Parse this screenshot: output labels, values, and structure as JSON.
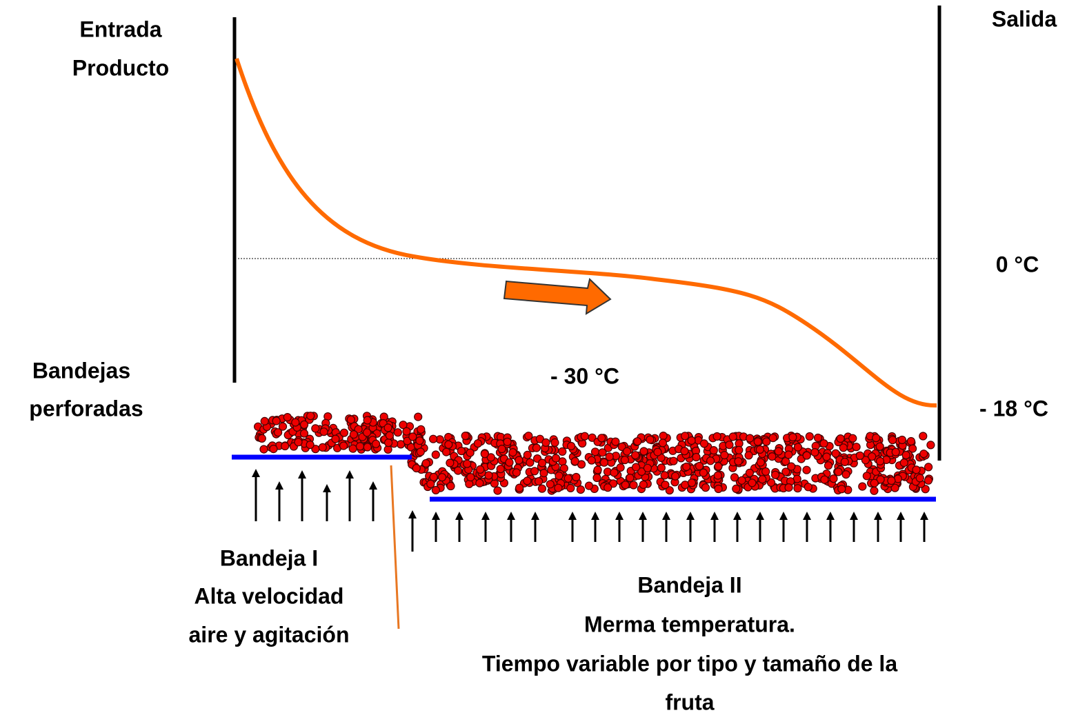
{
  "inlet_label": [
    "Entrada",
    "Producto"
  ],
  "outlet_label": "Salida",
  "temperatures": {
    "zero": "0 °C",
    "outlet": "- 18 °C",
    "air": "- 30 °C"
  },
  "trays_label": [
    "Bandejas",
    "perforadas"
  ],
  "tray_1": {
    "lines": [
      "Bandeja I",
      "Alta velocidad",
      "aire y agitación"
    ]
  },
  "tray_2": {
    "lines": [
      "Bandeja II",
      "Merma temperatura.",
      "Tiempo variable por tipo y tamaño de la",
      "fruta"
    ]
  }
}
